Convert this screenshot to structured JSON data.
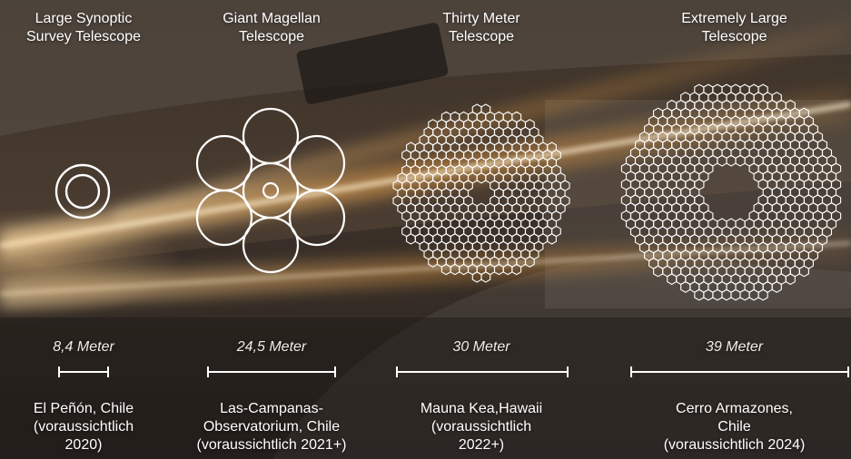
{
  "colors": {
    "outline": "#ffffff",
    "beam": "#f3a648",
    "background": "#2c2824"
  },
  "telescopes": [
    {
      "name": [
        "Large Synoptic",
        "Survey Telescope"
      ],
      "diameter": "8,4 Meter",
      "diameter_m": 8.4,
      "location": [
        "El Peñón, Chile",
        "(voraussichtlich",
        "2020)"
      ],
      "mirror_type": "concentric-rings"
    },
    {
      "name": [
        "Giant Magellan",
        "Telescope"
      ],
      "diameter": "24,5 Meter",
      "diameter_m": 24.5,
      "location": [
        "Las-Campanas-",
        "Observatorium, Chile",
        "(voraussichtlich 2021+)"
      ],
      "mirror_type": "seven-circles"
    },
    {
      "name": [
        "Thirty Meter",
        "Telescope"
      ],
      "diameter": "30 Meter",
      "diameter_m": 30,
      "location": [
        "Mauna Kea,Hawaii",
        "(voraussichtlich",
        "2022+)"
      ],
      "mirror_type": "hexagon-segments"
    },
    {
      "name": [
        "Extremely Large",
        "Telescope"
      ],
      "diameter": "39 Meter",
      "diameter_m": 39,
      "location": [
        "Cerro Armazones,",
        "Chile",
        "(voraussichtlich 2024)"
      ],
      "mirror_type": "hexagon-segments-large-hole"
    }
  ]
}
